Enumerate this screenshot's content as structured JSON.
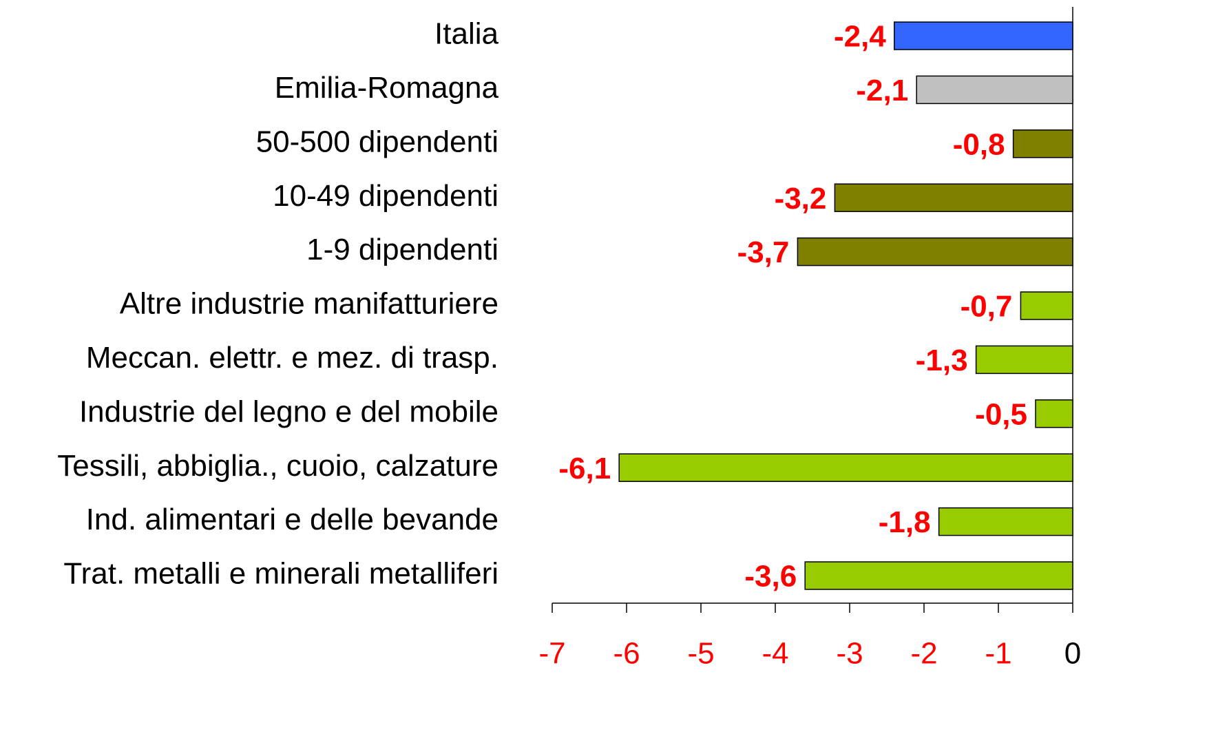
{
  "chart_data": {
    "type": "barh",
    "categories": [
      "Italia",
      "Emilia-Romagna",
      "50-500 dipendenti",
      "10-49 dipendenti",
      "1-9 dipendenti",
      "Altre industrie manifatturiere",
      "Meccan. elettr. e mez. di trasp.",
      "Industrie del legno e del mobile",
      "Tessili, abbiglia., cuoio, calzature",
      "Ind. alimentari e delle bevande",
      "Trat. metalli e minerali metalliferi"
    ],
    "values": [
      -2.4,
      -2.1,
      -0.8,
      -3.2,
      -3.7,
      -0.7,
      -1.3,
      -0.5,
      -6.1,
      -1.8,
      -3.6
    ],
    "value_labels": [
      "-2,4",
      "-2,1",
      "-0,8",
      "-3,2",
      "-3,7",
      "-0,7",
      "-1,3",
      "-0,5",
      "-6,1",
      "-1,8",
      "-3,6"
    ],
    "colors": [
      "#3366ff",
      "#c0c0c0",
      "#808000",
      "#808000",
      "#808000",
      "#99cc00",
      "#99cc00",
      "#99cc00",
      "#99cc00",
      "#99cc00",
      "#99cc00"
    ],
    "value_label_color": "#ff0000",
    "xlim": [
      -7,
      0
    ],
    "xticks": [
      -7,
      -6,
      -5,
      -4,
      -3,
      -2,
      -1,
      0
    ],
    "xtick_label_colors": [
      "#ff0000",
      "#ff0000",
      "#ff0000",
      "#ff0000",
      "#ff0000",
      "#ff0000",
      "#ff0000",
      "#000000"
    ],
    "grid": false
  }
}
